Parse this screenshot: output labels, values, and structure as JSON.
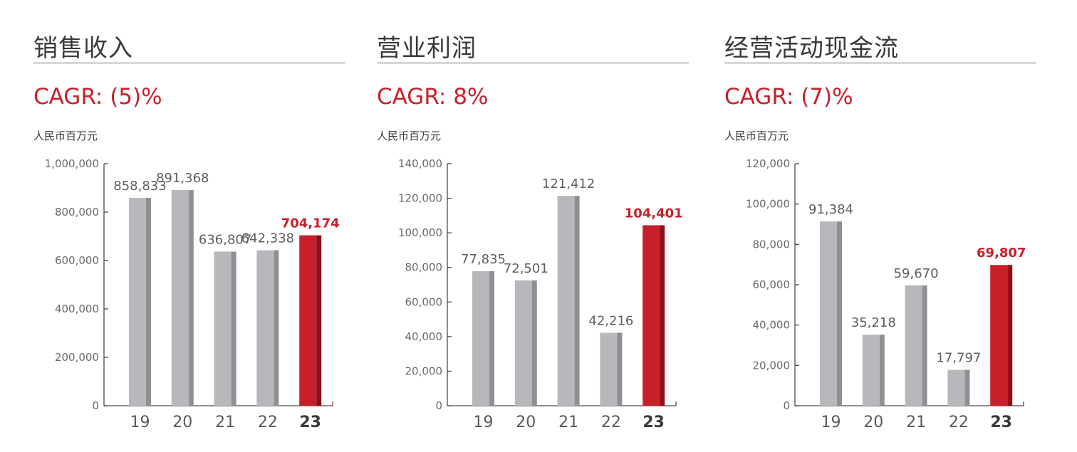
{
  "colors": {
    "bar": "#b7b8bb",
    "bar_shade": "#8f9094",
    "highlight": "#c8202b",
    "highlight_shade": "#8e0f17",
    "axis": "#4a4a4a"
  },
  "panels": [
    {
      "title": "销售收入",
      "cagr": "CAGR: (5)%",
      "unit": "人民币百万元",
      "chart_data": {
        "type": "bar",
        "categories": [
          "19",
          "20",
          "21",
          "22",
          "23"
        ],
        "values": [
          858833,
          891368,
          636807,
          642338,
          704174
        ],
        "value_labels": [
          "858,833",
          "891,368",
          "636,807",
          "642,338",
          "704,174"
        ],
        "highlight_index": 4,
        "ylim": [
          0,
          1000000
        ],
        "yticks": [
          0,
          200000,
          400000,
          600000,
          800000,
          1000000
        ],
        "ytick_labels": [
          "0",
          "200,000",
          "400,000",
          "600,000",
          "800,000",
          "1,000,000"
        ],
        "title": "销售收入",
        "ylabel": "人民币百万元",
        "xlabel": "",
        "grid": false
      }
    },
    {
      "title": "营业利润",
      "cagr": "CAGR: 8%",
      "unit": "人民币百万元",
      "chart_data": {
        "type": "bar",
        "categories": [
          "19",
          "20",
          "21",
          "22",
          "23"
        ],
        "values": [
          77835,
          72501,
          121412,
          42216,
          104401
        ],
        "value_labels": [
          "77,835",
          "72,501",
          "121,412",
          "42,216",
          "104,401"
        ],
        "highlight_index": 4,
        "ylim": [
          0,
          140000
        ],
        "yticks": [
          0,
          20000,
          40000,
          60000,
          80000,
          100000,
          120000,
          140000
        ],
        "ytick_labels": [
          "0",
          "20,000",
          "40,000",
          "60,000",
          "80,000",
          "100,000",
          "120,000",
          "140,000"
        ],
        "title": "营业利润",
        "ylabel": "人民币百万元",
        "xlabel": "",
        "grid": false
      }
    },
    {
      "title": "经营活动现金流",
      "cagr": "CAGR: (7)%",
      "unit": "人民币百万元",
      "chart_data": {
        "type": "bar",
        "categories": [
          "19",
          "20",
          "21",
          "22",
          "23"
        ],
        "values": [
          91384,
          35218,
          59670,
          17797,
          69807
        ],
        "value_labels": [
          "91,384",
          "35,218",
          "59,670",
          "17,797",
          "69,807"
        ],
        "highlight_index": 4,
        "ylim": [
          0,
          120000
        ],
        "yticks": [
          0,
          20000,
          40000,
          60000,
          80000,
          100000,
          120000
        ],
        "ytick_labels": [
          "0",
          "20,000",
          "40,000",
          "60,000",
          "80,000",
          "100,000",
          "120,000"
        ],
        "title": "经营活动现金流",
        "ylabel": "人民币百万元",
        "xlabel": "",
        "grid": false
      }
    }
  ]
}
